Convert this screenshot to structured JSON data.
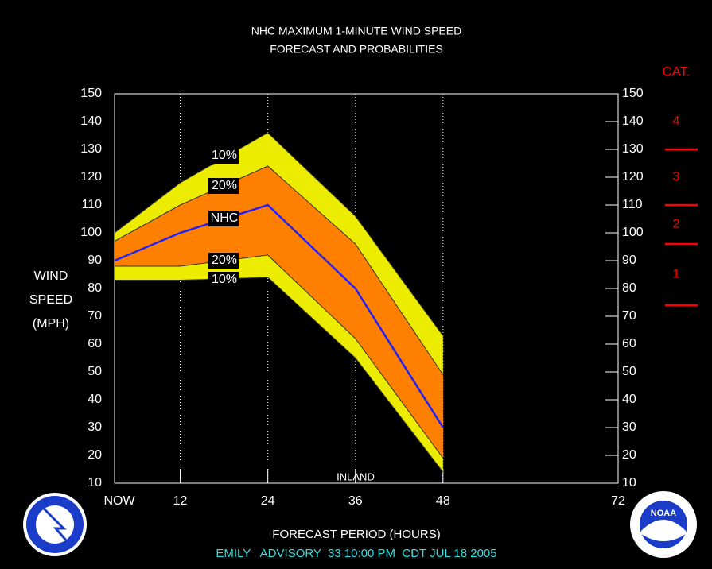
{
  "chart_data": {
    "type": "line",
    "title": [
      "NHC MAXIMUM 1-MINUTE WIND SPEED",
      "FORECAST AND PROBABILITIES"
    ],
    "y_label": [
      "WIND",
      "SPEED",
      "(MPH)"
    ],
    "x_label": "FORECAST PERIOD (HOURS)",
    "footer": "EMILY   ADVISORY  33 10:00 PM  CDT JUL 18 2005",
    "annotation": "INLAND",
    "x": [
      3,
      12,
      24,
      36,
      48
    ],
    "xlim": [
      3,
      72
    ],
    "xticks": [
      {
        "value": 3,
        "label": "NOW"
      },
      12,
      24,
      36,
      48,
      72
    ],
    "ylim": [
      10,
      150
    ],
    "yticks": [
      10,
      20,
      30,
      40,
      50,
      60,
      70,
      80,
      90,
      100,
      110,
      120,
      130,
      140,
      150
    ],
    "series": [
      {
        "name": "10%",
        "color": "#ecec00",
        "values": [
          100,
          118,
          136,
          106,
          63
        ]
      },
      {
        "name": "20%",
        "color": "#ff8000",
        "values": [
          97,
          110,
          124,
          96,
          49
        ]
      },
      {
        "name": "NHC",
        "color": "#2020ff",
        "values": [
          90,
          100,
          110,
          80,
          30
        ]
      },
      {
        "name": "20%",
        "color": "#ff8000",
        "values": [
          88,
          88,
          92,
          62,
          19
        ]
      },
      {
        "name": "10%",
        "color": "#ecec00",
        "values": [
          83,
          83,
          84,
          55,
          14
        ]
      }
    ],
    "category_title": "CAT.",
    "category_bounds": [
      74,
      96,
      110,
      130
    ],
    "category_labels": [
      "1",
      "2",
      "3",
      "4"
    ],
    "category_color": "#ff0000",
    "logos": [
      "NATIONAL WEATHER SERVICE",
      "NOAA"
    ]
  }
}
